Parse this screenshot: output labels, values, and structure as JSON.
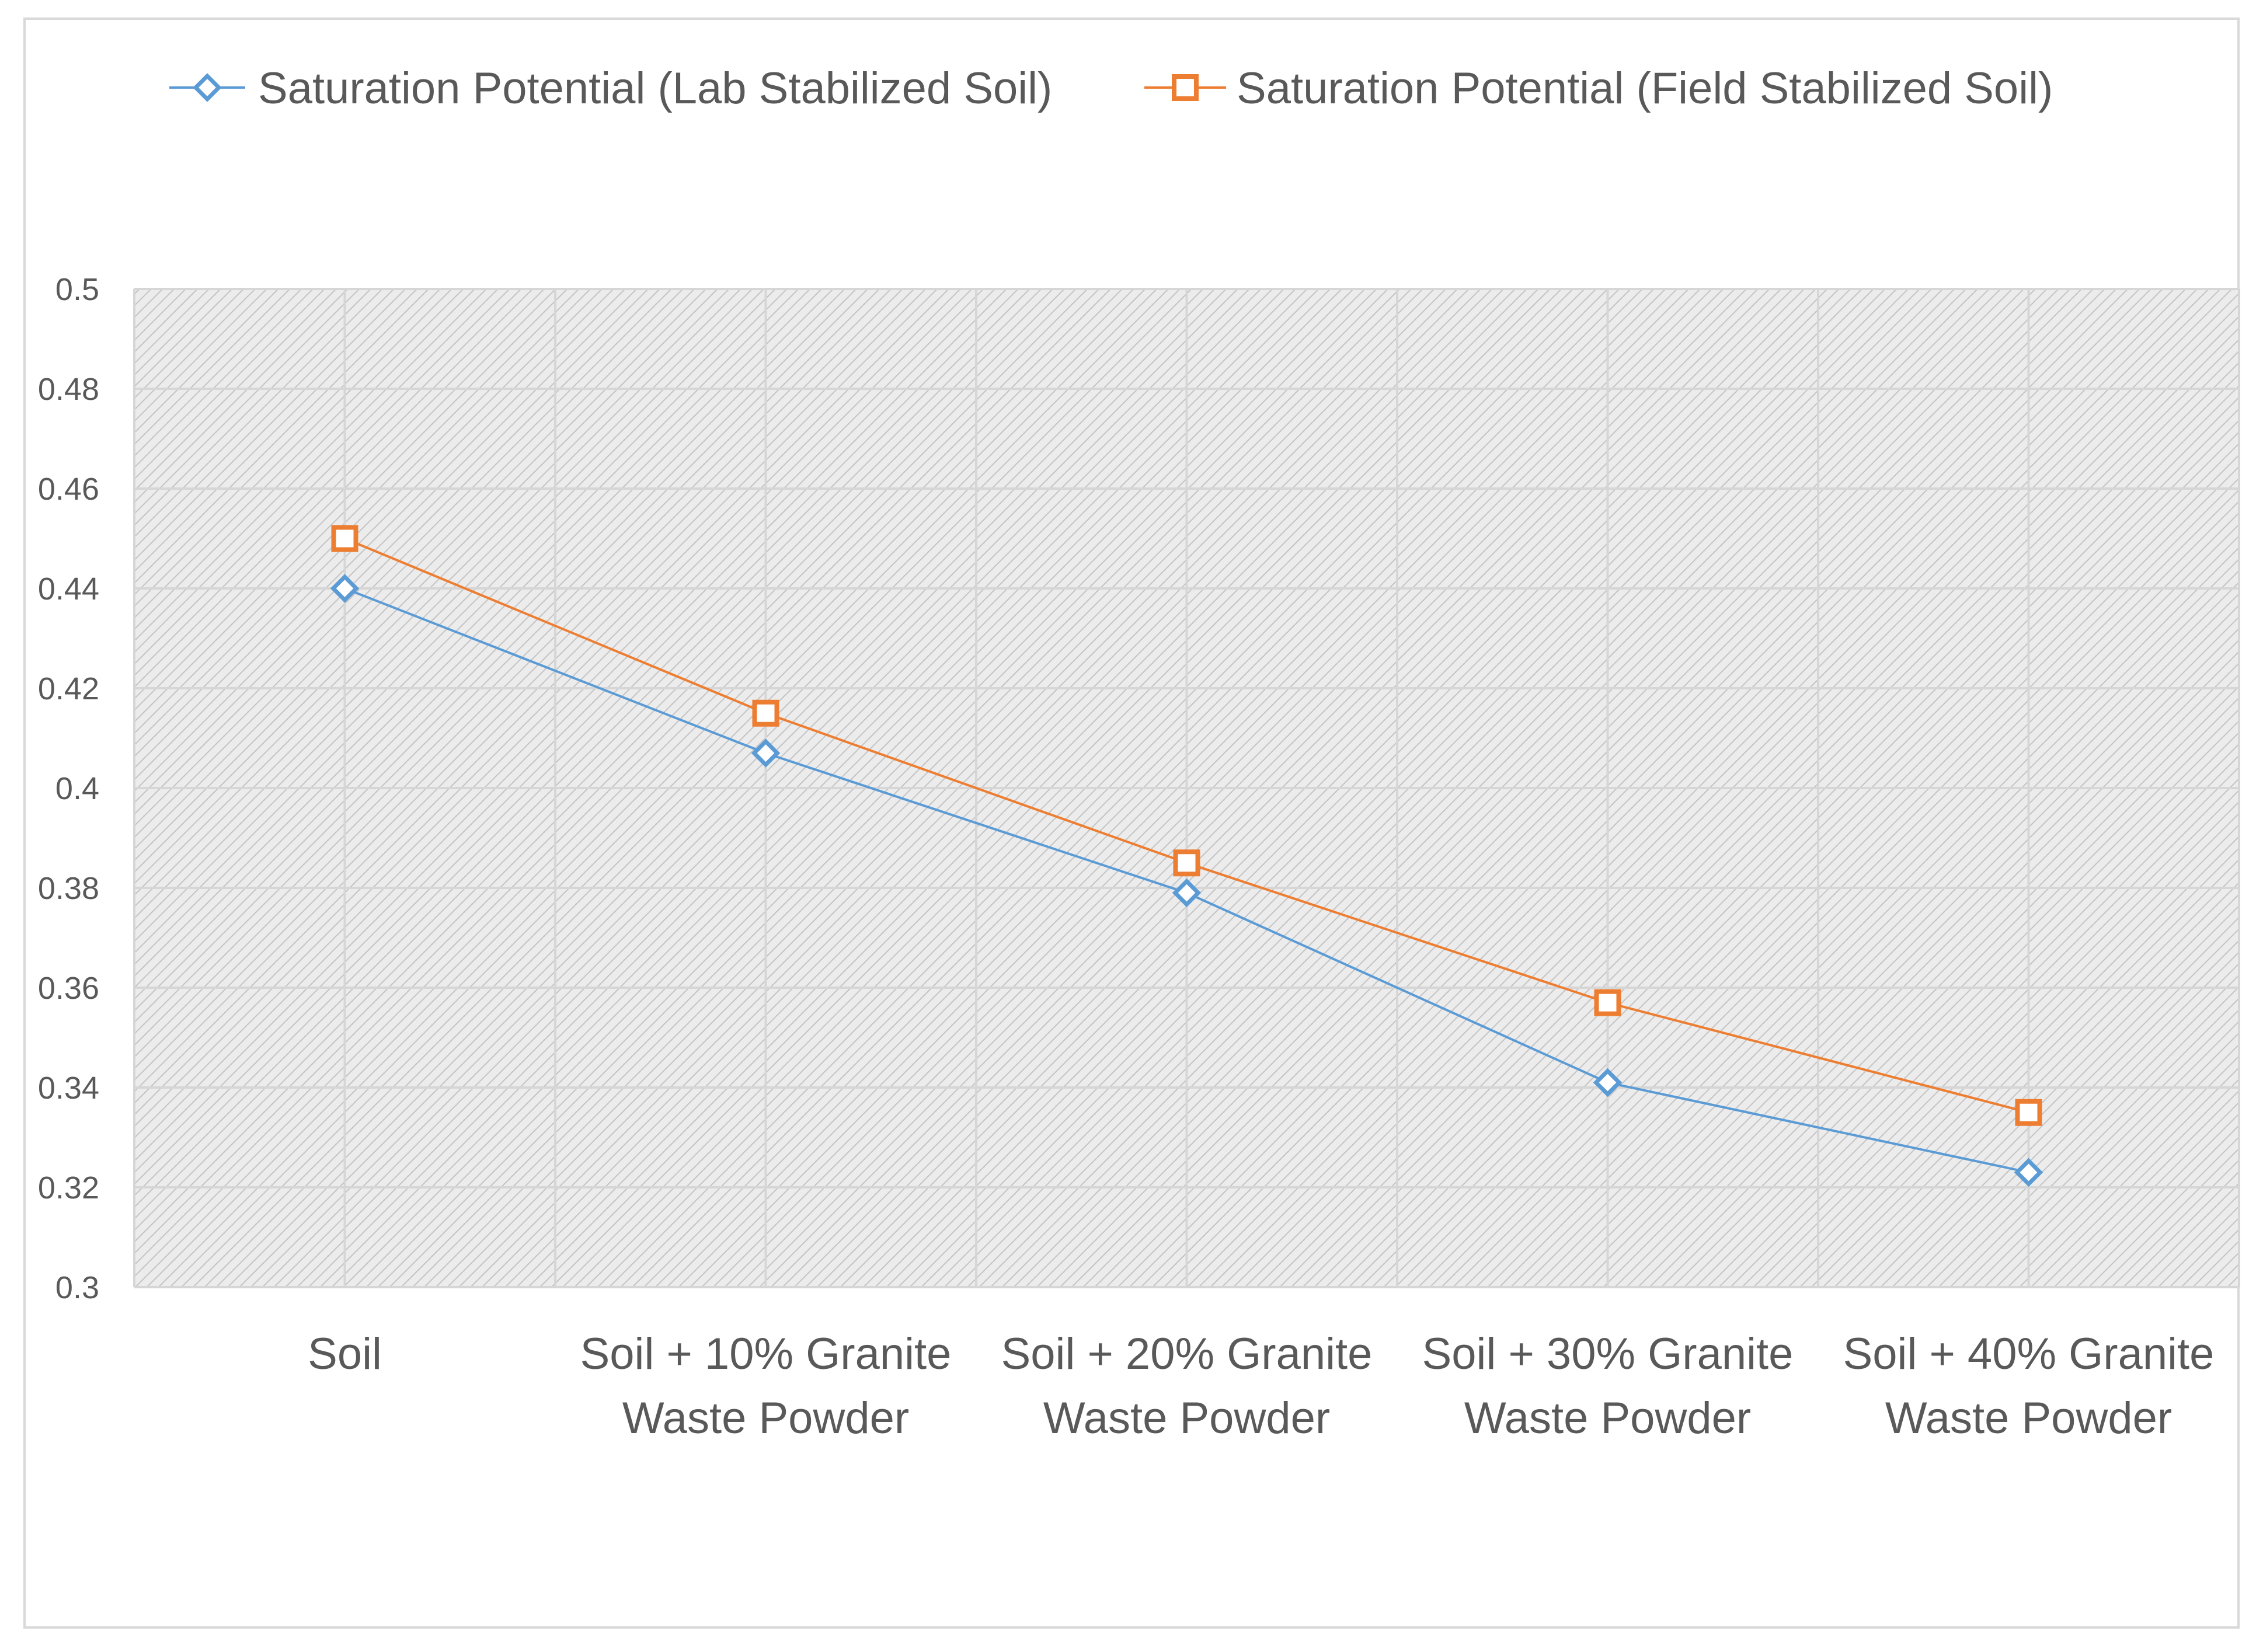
{
  "chart_data": {
    "type": "line",
    "title": "",
    "xlabel": "",
    "ylabel": "",
    "categories": [
      [
        "Soil"
      ],
      [
        "Soil + 10% Granite",
        "Waste Powder"
      ],
      [
        "Soil + 20% Granite",
        "Waste Powder"
      ],
      [
        "Soil + 30% Granite",
        "Waste Powder"
      ],
      [
        "Soil + 40% Granite",
        "Waste Powder"
      ]
    ],
    "ylim": [
      0.3,
      0.5
    ],
    "yticks": [
      "0.3",
      "0.32",
      "0.34",
      "0.36",
      "0.38",
      "0.4",
      "0.42",
      "0.44",
      "0.46",
      "0.48",
      "0.5"
    ],
    "ytick_values": [
      0.3,
      0.32,
      0.34,
      0.36,
      0.38,
      0.4,
      0.42,
      0.44,
      0.46,
      0.48,
      0.5
    ],
    "grid": true,
    "legend_position": "top",
    "series": [
      {
        "name": "Saturation Potential (Lab Stabilized Soil)",
        "color": "#5b9bd5",
        "marker": "diamond",
        "values": [
          0.44,
          0.407,
          0.379,
          0.341,
          0.323
        ]
      },
      {
        "name": "Saturation Potential (Field Stabilized Soil)",
        "color": "#ed7d31",
        "marker": "square",
        "values": [
          0.45,
          0.415,
          0.385,
          0.357,
          0.335
        ]
      }
    ]
  }
}
